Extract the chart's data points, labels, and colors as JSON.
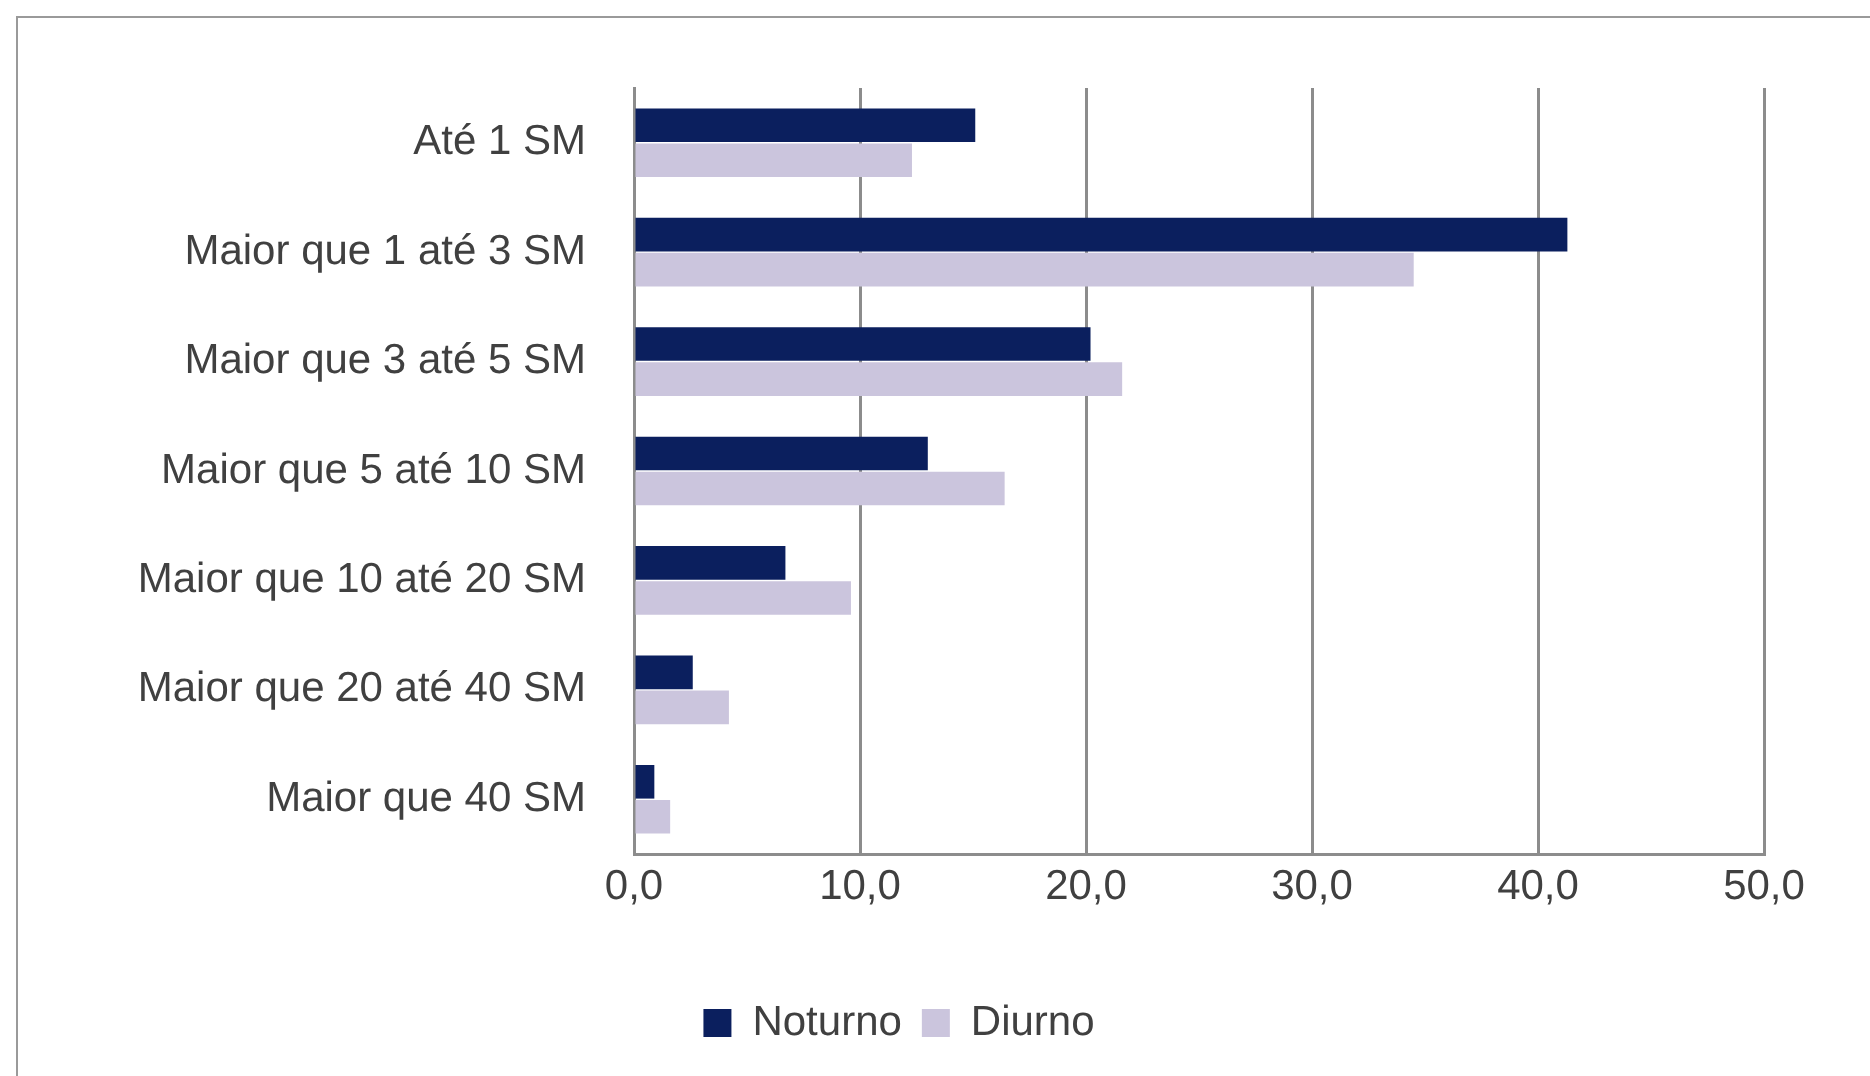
{
  "chart_data": {
    "type": "bar",
    "orientation": "horizontal",
    "categories": [
      "Até 1 SM",
      "Maior que 1 até 3 SM",
      "Maior que 3 até 5 SM",
      "Maior que 5 até 10 SM",
      "Maior que 10 até 20 SM",
      "Maior que 20 até 40 SM",
      "Maior que 40 SM"
    ],
    "series": [
      {
        "name": "Noturno",
        "color": "#0b1f5e",
        "values": [
          15.1,
          41.3,
          20.2,
          13.0,
          6.7,
          2.6,
          0.9
        ]
      },
      {
        "name": "Diurno",
        "color": "#cbc5dd",
        "values": [
          12.3,
          34.5,
          21.6,
          16.4,
          9.6,
          4.2,
          1.6
        ]
      }
    ],
    "xlim": [
      0,
      50
    ],
    "xticks": [
      {
        "value": 0,
        "label": "0,0"
      },
      {
        "value": 10,
        "label": "10,0"
      },
      {
        "value": 20,
        "label": "20,0"
      },
      {
        "value": 30,
        "label": "30,0"
      },
      {
        "value": 40,
        "label": "40,0"
      },
      {
        "value": 50,
        "label": "50,0"
      }
    ],
    "grid": "x",
    "legend": "bottom"
  }
}
